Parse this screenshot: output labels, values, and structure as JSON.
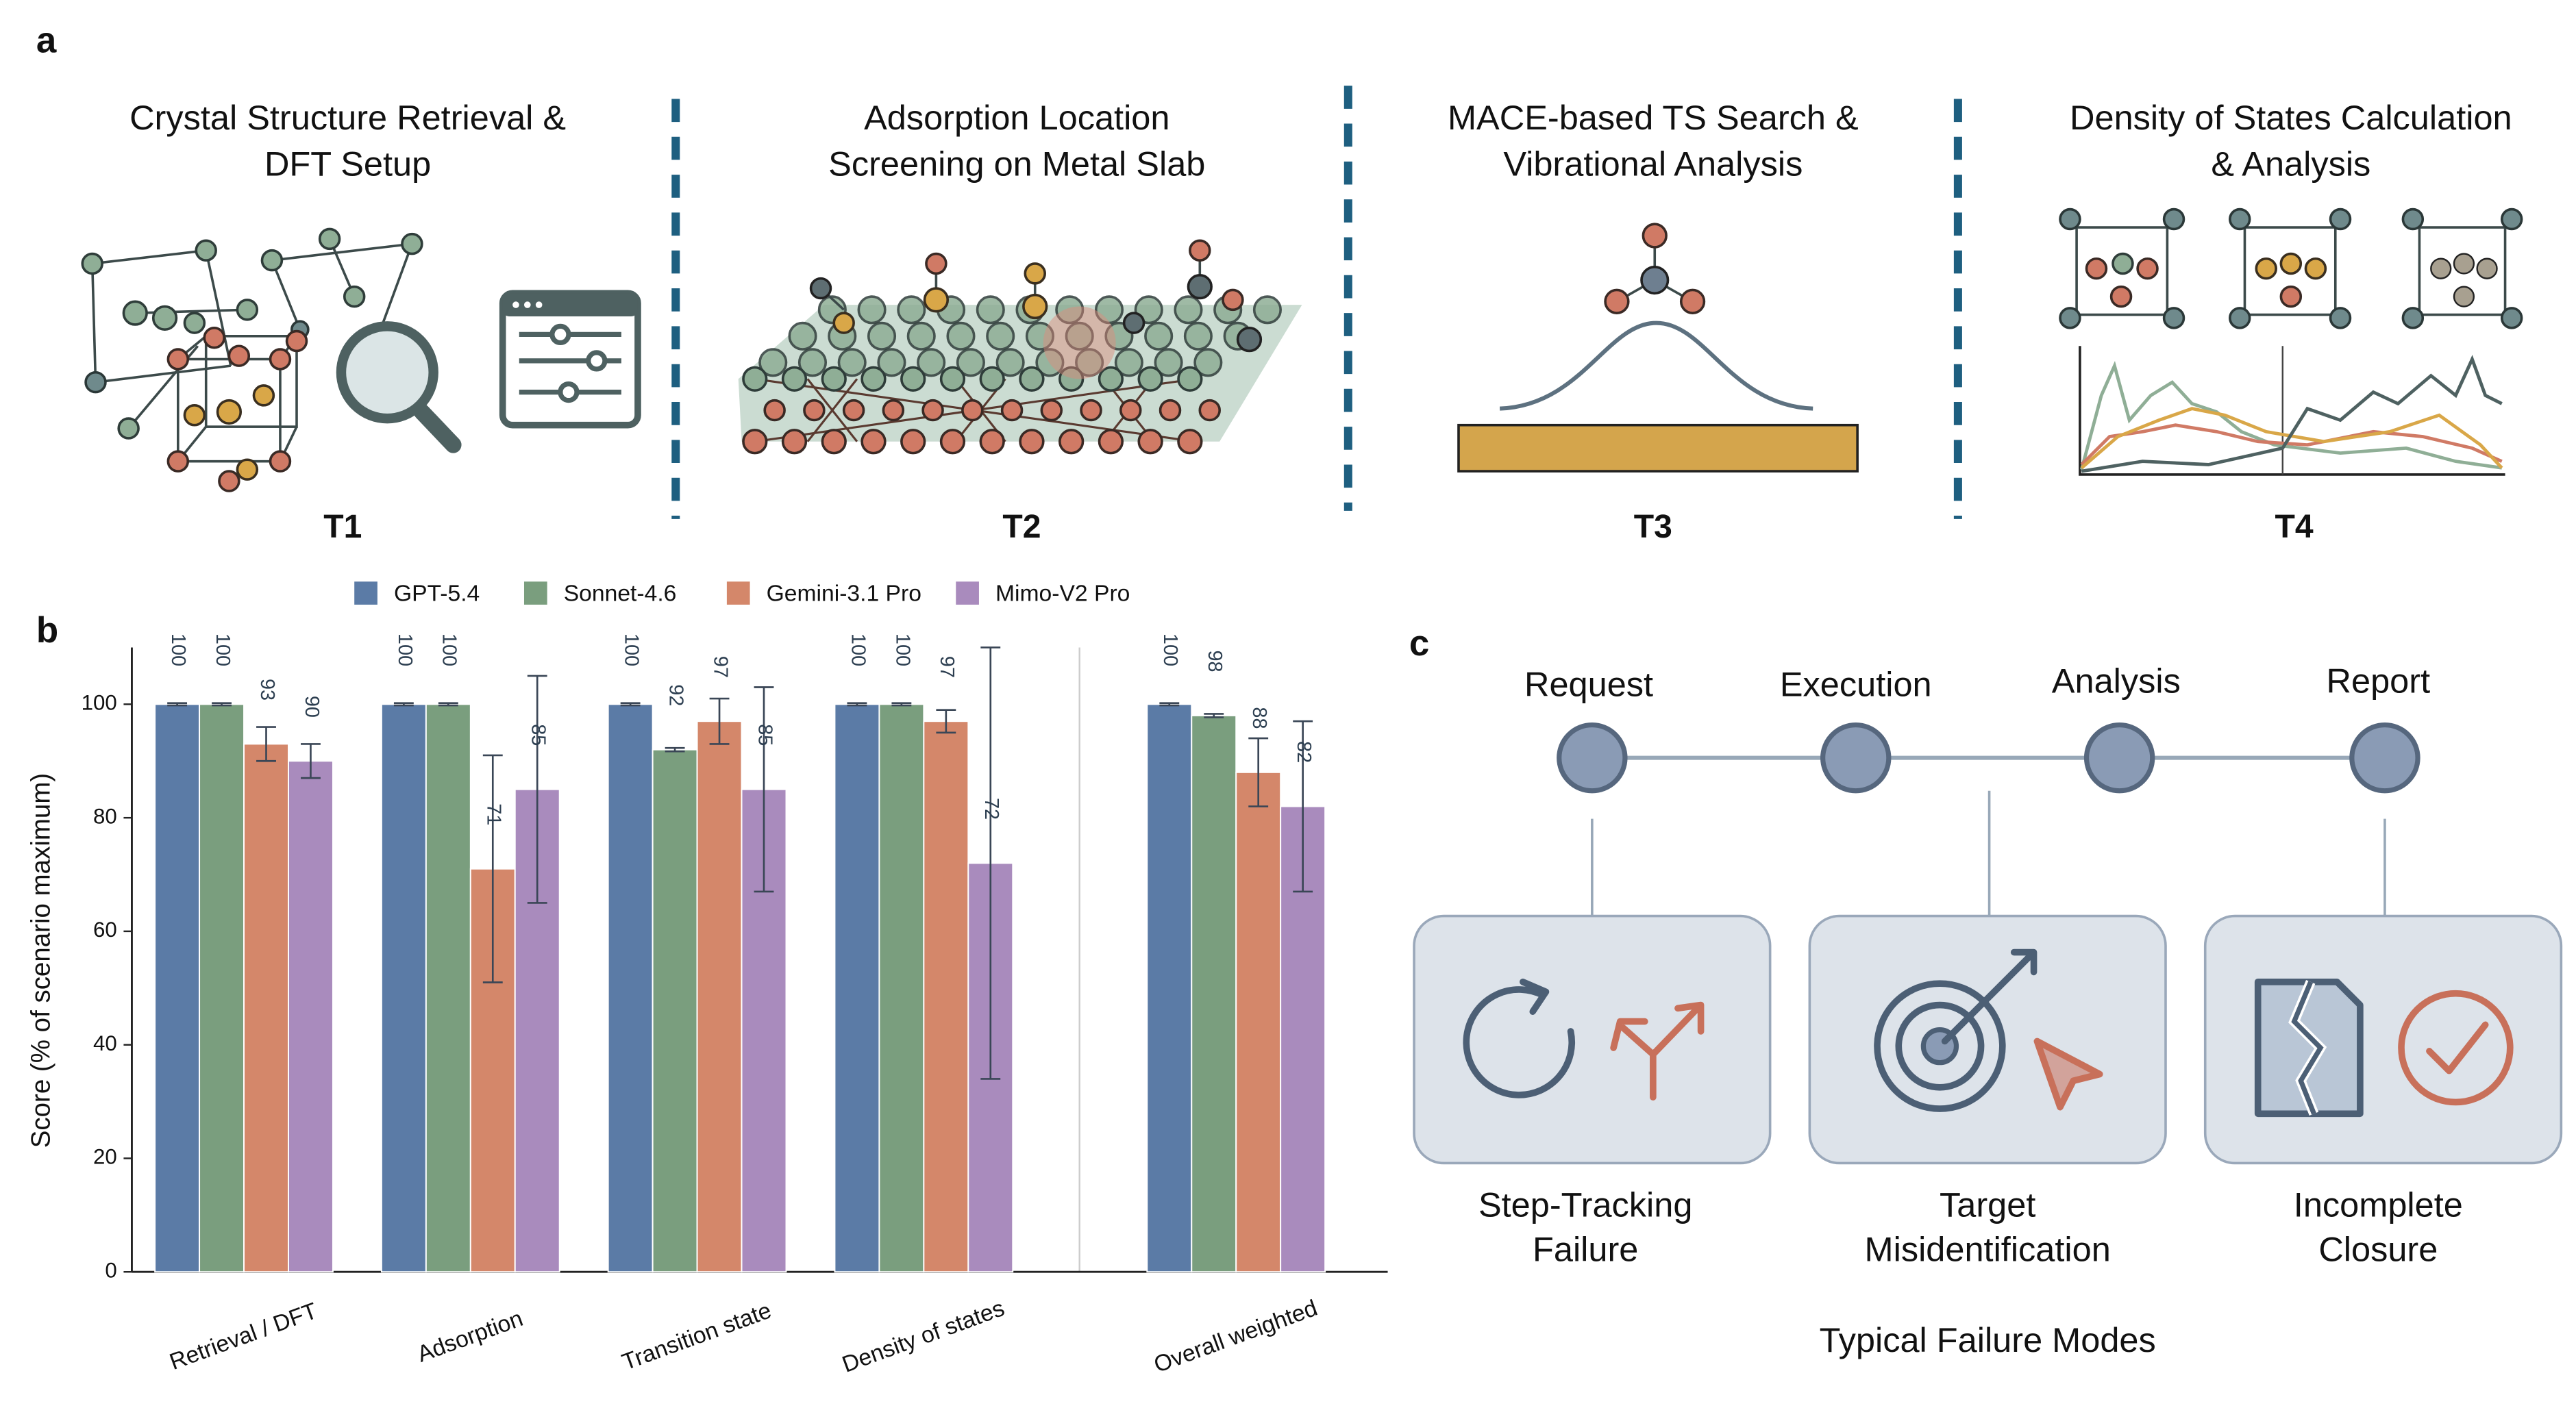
{
  "panel_a": {
    "label": "a",
    "tasks": [
      {
        "title_lines": [
          "Crystal Structure Retrieval &",
          "DFT Setup"
        ],
        "tag": "T1"
      },
      {
        "title_lines": [
          "Adsorption Location",
          "Screening on Metal Slab"
        ],
        "tag": "T2"
      },
      {
        "title_lines": [
          "MACE-based TS Search &",
          "Vibrational Analysis"
        ],
        "tag": "T3"
      },
      {
        "title_lines": [
          "Density of States Calculation",
          "& Analysis"
        ],
        "tag": "T4"
      }
    ]
  },
  "chart_data": {
    "type": "bar",
    "label": "b",
    "ylabel": "Score (% of scenario maximum)",
    "categories": [
      "Retrieval / DFT",
      "Adsorption",
      "Transition state",
      "Density of states",
      "Overall weighted"
    ],
    "series": [
      {
        "name": "GPT-5.4",
        "color": "#5b7ba6",
        "values": [
          100,
          100,
          100,
          100,
          100
        ],
        "errors": [
          0.2,
          0.2,
          0.2,
          0.2,
          0.2
        ]
      },
      {
        "name": "Sonnet-4.6",
        "color": "#7a9e7e",
        "values": [
          100,
          100,
          92,
          100,
          98
        ],
        "errors": [
          0.2,
          0.2,
          0.3,
          0.2,
          0.3
        ]
      },
      {
        "name": "Gemini-3.1 Pro",
        "color": "#d4876a",
        "values": [
          93,
          71,
          97,
          97,
          88
        ],
        "errors": [
          3,
          20,
          4,
          2,
          6
        ]
      },
      {
        "name": "Mimo-V2 Pro",
        "color": "#a98bbd",
        "values": [
          90,
          85,
          85,
          72,
          82
        ],
        "errors": [
          3,
          20,
          18,
          38,
          15
        ]
      }
    ],
    "ylim": [
      0,
      110
    ],
    "yticks": [
      0,
      20,
      40,
      60,
      80,
      100
    ],
    "legend": "top",
    "grid": false
  },
  "panel_c": {
    "label": "c",
    "stages": [
      "Request",
      "Execution",
      "Analysis",
      "Report"
    ],
    "failure_modes": [
      [
        "Step-Tracking",
        "Failure"
      ],
      [
        "Target",
        "Misidentification"
      ],
      [
        "Incomplete",
        "Closure"
      ]
    ],
    "caption": "Typical Failure Modes"
  }
}
